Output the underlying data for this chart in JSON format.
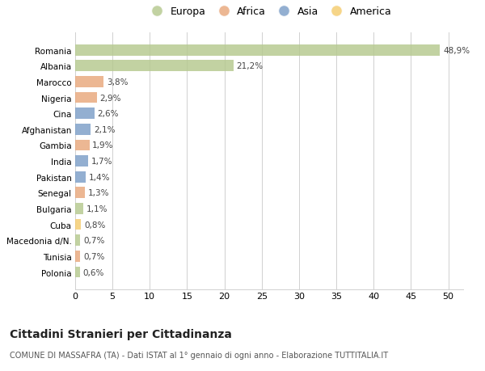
{
  "countries": [
    "Romania",
    "Albania",
    "Marocco",
    "Nigeria",
    "Cina",
    "Afghanistan",
    "Gambia",
    "India",
    "Pakistan",
    "Senegal",
    "Bulgaria",
    "Cuba",
    "Macedonia d/N.",
    "Tunisia",
    "Polonia"
  ],
  "values": [
    48.9,
    21.2,
    3.8,
    2.9,
    2.6,
    2.1,
    1.9,
    1.7,
    1.4,
    1.3,
    1.1,
    0.8,
    0.7,
    0.7,
    0.6
  ],
  "labels": [
    "48,9%",
    "21,2%",
    "3,8%",
    "2,9%",
    "2,6%",
    "2,1%",
    "1,9%",
    "1,7%",
    "1,4%",
    "1,3%",
    "1,1%",
    "0,8%",
    "0,7%",
    "0,7%",
    "0,6%"
  ],
  "colors": [
    "#b5c98e",
    "#b5c98e",
    "#e8a87c",
    "#e8a87c",
    "#7b9ec7",
    "#7b9ec7",
    "#e8a87c",
    "#7b9ec7",
    "#7b9ec7",
    "#e8a87c",
    "#b5c98e",
    "#f5cc6e",
    "#b5c98e",
    "#e8a87c",
    "#b5c98e"
  ],
  "legend": [
    {
      "label": "Europa",
      "color": "#b5c98e"
    },
    {
      "label": "Africa",
      "color": "#e8a87c"
    },
    {
      "label": "Asia",
      "color": "#7b9ec7"
    },
    {
      "label": "America",
      "color": "#f5cc6e"
    }
  ],
  "xlim": [
    0,
    52
  ],
  "xticks": [
    0,
    5,
    10,
    15,
    20,
    25,
    30,
    35,
    40,
    45,
    50
  ],
  "title": "Cittadini Stranieri per Cittadinanza",
  "subtitle": "COMUNE DI MASSAFRA (TA) - Dati ISTAT al 1° gennaio di ogni anno - Elaborazione TUTTITALIA.IT",
  "background_color": "#ffffff",
  "grid_color": "#d0d0d0"
}
